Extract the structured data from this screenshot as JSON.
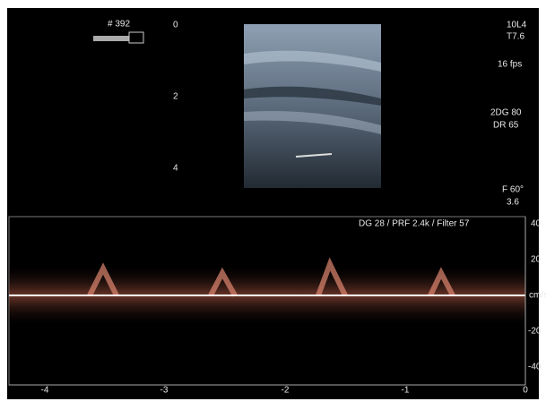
{
  "header": {
    "frame": "# 392",
    "probe": "10L4",
    "mi": "T7.6",
    "fps": "16 fps",
    "gain": "2DG 80",
    "dr": "DR 65",
    "freq": "F 60°",
    "depth": "3.6"
  },
  "depth_scale": [
    "0",
    "2",
    "4"
  ],
  "doppler": {
    "settings": "DG 28 /   PRF 2.4k   / Filter 57",
    "velocity_labels": [
      "40",
      "20",
      "cm/s",
      "-20",
      "-40"
    ],
    "time_labels": [
      "-4",
      "-3",
      "-2",
      "-1",
      "0"
    ]
  }
}
